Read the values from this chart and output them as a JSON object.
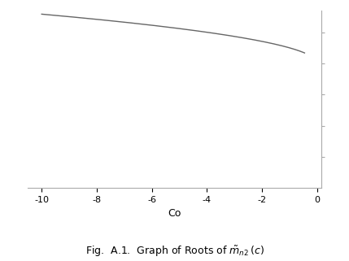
{
  "xlim": [
    -10.5,
    0.15
  ],
  "xlabel": "Co",
  "caption": "Fig.  A.1.  Graph of Roots of $\\tilde{m}_{n2}\\,(c)$",
  "line_color": "#666666",
  "line_width": 1.0,
  "background_color": "#ffffff",
  "xticks": [
    -10,
    -8,
    -6,
    -4,
    -2,
    0
  ],
  "xlabel_fontsize": 9,
  "caption_fontsize": 9,
  "tick_fontsize": 8
}
